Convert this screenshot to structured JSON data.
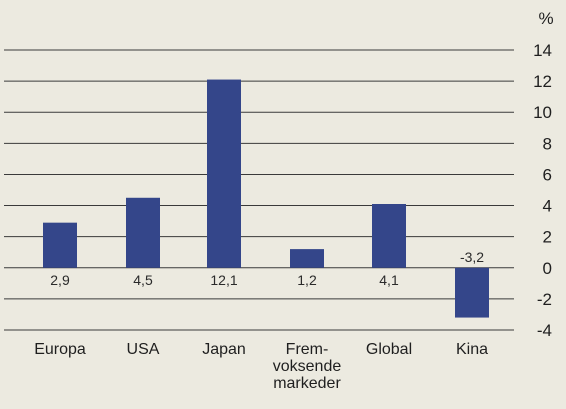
{
  "chart_data": {
    "type": "bar",
    "unit": "%",
    "categories": [
      [
        "Europa"
      ],
      [
        "USA"
      ],
      [
        "Japan"
      ],
      [
        "Frem-",
        "voksende",
        "markeder"
      ],
      [
        "Global"
      ],
      [
        "Kina"
      ]
    ],
    "values": [
      2.9,
      4.5,
      12.1,
      1.2,
      4.1,
      -3.2
    ],
    "value_labels": [
      "2,9",
      "4,5",
      "12,1",
      "1,2",
      "4,1",
      "-3,2"
    ],
    "ylim": [
      -4,
      14
    ],
    "yticks": [
      14,
      12,
      10,
      8,
      6,
      4,
      2,
      0,
      -2,
      -4
    ],
    "ytick_labels": [
      "14",
      "12",
      "10",
      "8",
      "6",
      "4",
      "2",
      "0",
      "-2",
      "-4"
    ],
    "grid": true,
    "colors": {
      "bar": "#34468a",
      "grid": "#3a3a3a",
      "background": "#eceae0"
    }
  }
}
